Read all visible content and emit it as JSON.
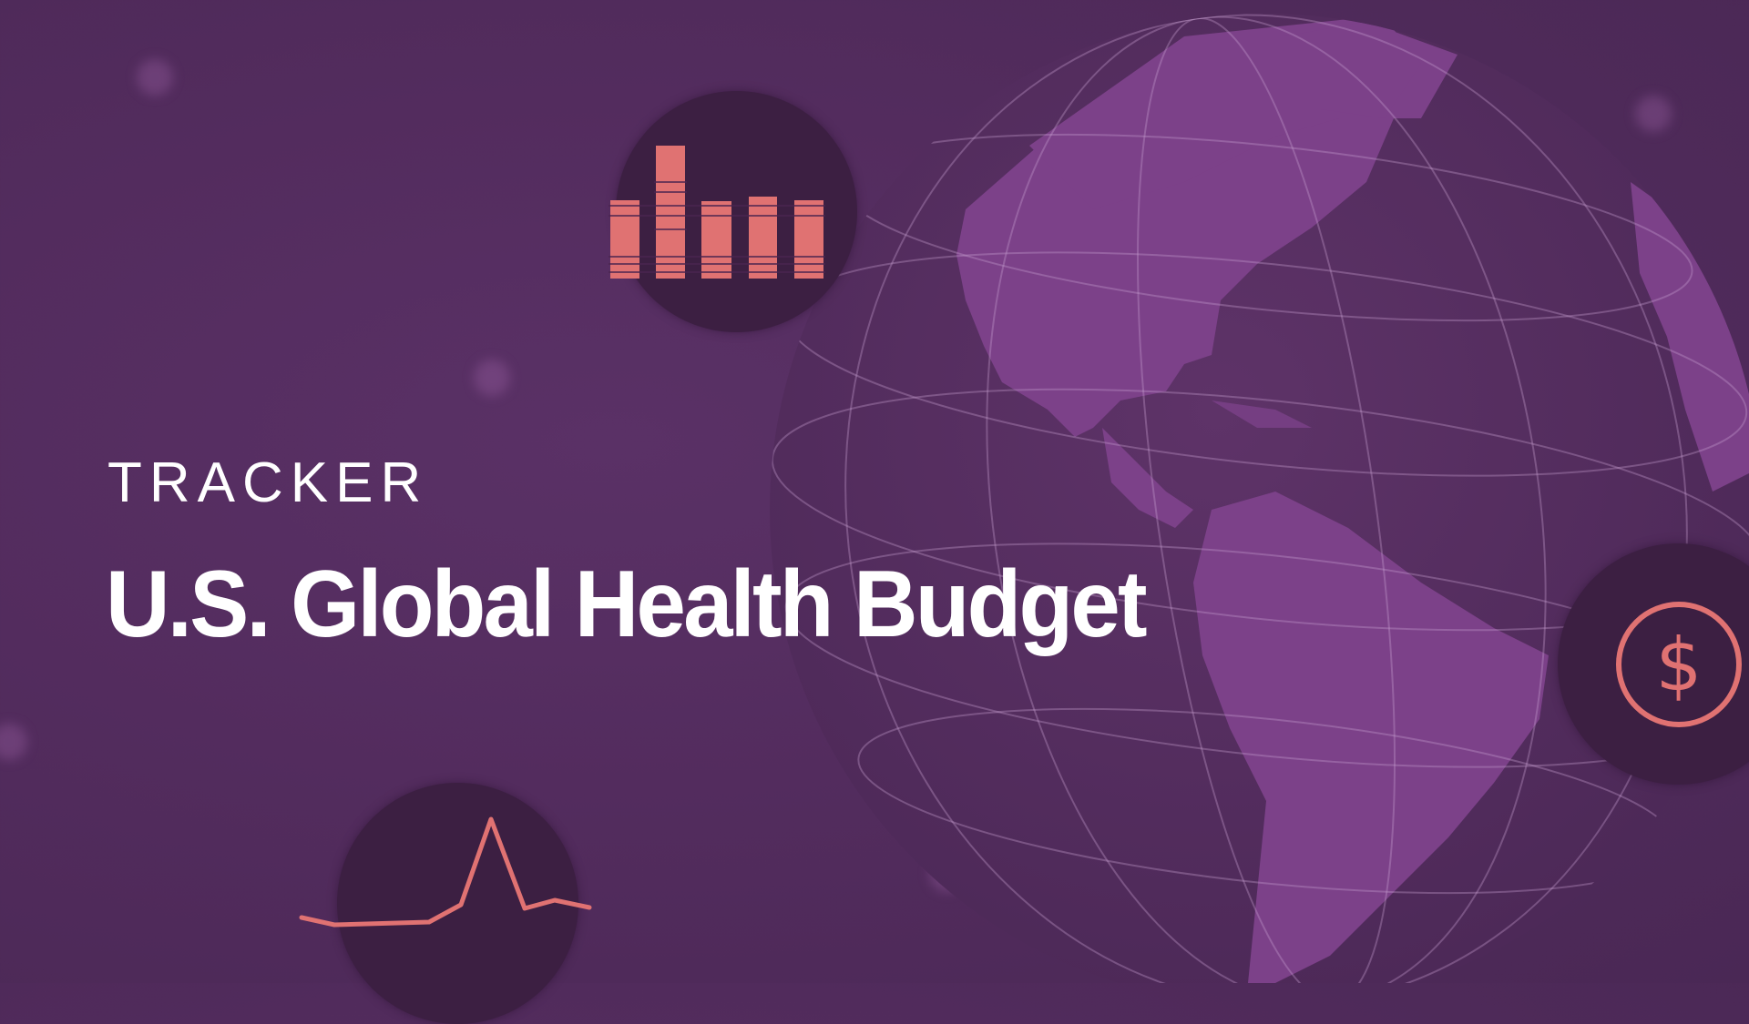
{
  "hero": {
    "eyebrow": "TRACKER",
    "title": "U.S. Global Health Budget"
  },
  "icons": {
    "bar_chart": "bar-chart-icon",
    "dollar": "dollar-circle-icon",
    "pulse": "pulse-line-icon",
    "globe": "globe-illustration"
  },
  "colors": {
    "background": "#532c5e",
    "icon_circle": "#3c1f42",
    "accent": "#e07272",
    "land": "#7c4189",
    "text": "#ffffff"
  }
}
